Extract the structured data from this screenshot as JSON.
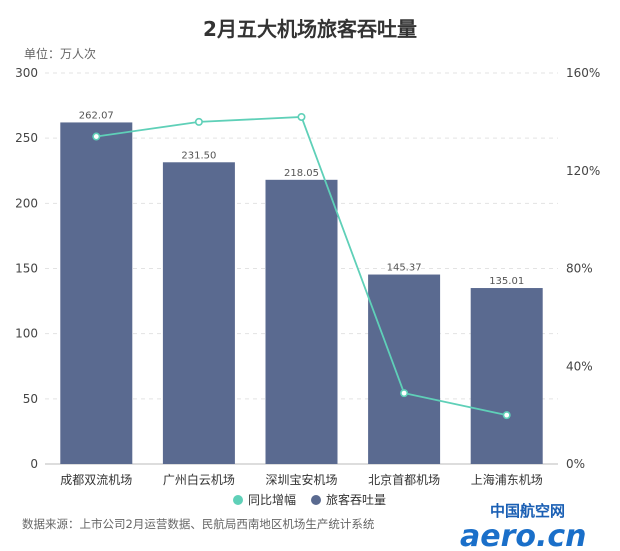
{
  "chart_data": {
    "type": "bar",
    "title": "2月五大机场旅客吞吐量",
    "unit_label": "单位：万人次",
    "categories": [
      "成都双流机场",
      "广州白云机场",
      "深圳宝安机场",
      "北京首都机场",
      "上海浦东机场"
    ],
    "series": [
      {
        "name": "旅客吞吐量",
        "type": "bar",
        "axis": "left",
        "color": "#5a6a90",
        "values": [
          262.07,
          231.5,
          218.05,
          145.37,
          135.01
        ],
        "labels": [
          "262.07",
          "231.50",
          "218.05",
          "145.37",
          "135.01"
        ]
      },
      {
        "name": "同比增幅",
        "type": "line",
        "axis": "right",
        "color": "#5fd0b8",
        "values": [
          134,
          140,
          142,
          29,
          20
        ]
      }
    ],
    "y_left": {
      "min": 0,
      "max": 300,
      "ticks": [
        0,
        50,
        100,
        150,
        200,
        250,
        300
      ]
    },
    "y_right": {
      "min": 0,
      "max": 160,
      "ticks": [
        0,
        40,
        80,
        120,
        160
      ],
      "tick_labels": [
        "0%",
        "40%",
        "80%",
        "120%",
        "160%"
      ]
    },
    "grid": true,
    "legend_position": "bottom"
  },
  "source_text": "数据来源：上市公司2月运营数据、民航局西南地区机场生产统计系统",
  "watermark": {
    "cn": "中国航空网",
    "en": "aero.cn"
  }
}
